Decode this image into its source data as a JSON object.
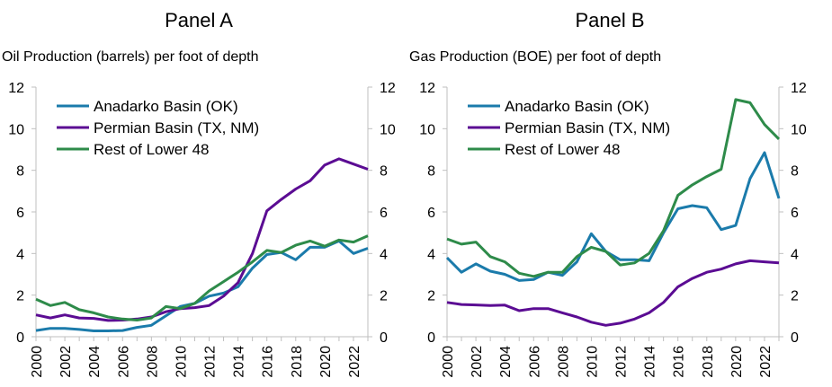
{
  "chart_data": [
    {
      "type": "line",
      "title": "Panel A",
      "subtitle": "Oil Production (barrels) per foot of depth",
      "xlabel": "",
      "ylabel": "Oil Production (barrels) per foot of depth",
      "xlim": [
        2000,
        2023
      ],
      "ylim": [
        0,
        12
      ],
      "x_ticks": [
        "2000",
        "2002",
        "2004",
        "2006",
        "2008",
        "2010",
        "2012",
        "2014",
        "2016",
        "2018",
        "2020",
        "2022"
      ],
      "y_ticks": [
        "0",
        "2",
        "4",
        "6",
        "8",
        "10",
        "12"
      ],
      "legend_position": "top-left",
      "x": [
        2000,
        2001,
        2002,
        2003,
        2004,
        2005,
        2006,
        2007,
        2008,
        2009,
        2010,
        2011,
        2012,
        2013,
        2014,
        2015,
        2016,
        2017,
        2018,
        2019,
        2020,
        2021,
        2022,
        2023
      ],
      "series": [
        {
          "name": "Anadarko Basin (OK)",
          "color": "#1b7bab",
          "values": [
            0.3,
            0.4,
            0.4,
            0.35,
            0.28,
            0.28,
            0.3,
            0.45,
            0.55,
            1.0,
            1.45,
            1.6,
            1.95,
            2.1,
            2.4,
            3.3,
            3.95,
            4.05,
            3.7,
            4.3,
            4.3,
            4.6,
            4.0,
            4.25
          ]
        },
        {
          "name": "Permian Basin (TX, NM)",
          "color": "#5b0c93",
          "values": [
            1.05,
            0.9,
            1.05,
            0.9,
            0.88,
            0.78,
            0.8,
            0.85,
            0.95,
            1.2,
            1.35,
            1.4,
            1.5,
            1.95,
            2.6,
            4.0,
            6.05,
            6.6,
            7.1,
            7.5,
            8.25,
            8.55,
            8.3,
            8.05
          ]
        },
        {
          "name": "Rest of Lower 48",
          "color": "#2e8b4a",
          "values": [
            1.8,
            1.5,
            1.65,
            1.3,
            1.15,
            0.95,
            0.85,
            0.8,
            0.9,
            1.45,
            1.35,
            1.6,
            2.2,
            2.65,
            3.1,
            3.6,
            4.15,
            4.05,
            4.4,
            4.6,
            4.35,
            4.65,
            4.55,
            4.85
          ]
        }
      ]
    },
    {
      "type": "line",
      "title": "Panel B",
      "subtitle": "Gas Production (BOE) per foot of depth",
      "xlabel": "",
      "ylabel": "Gas Production (BOE) per foot of depth",
      "xlim": [
        2000,
        2023
      ],
      "ylim": [
        0,
        12
      ],
      "x_ticks": [
        "2000",
        "2002",
        "2004",
        "2006",
        "2008",
        "2010",
        "2012",
        "2014",
        "2016",
        "2018",
        "2020",
        "2022"
      ],
      "y_ticks": [
        "0",
        "2",
        "4",
        "6",
        "8",
        "10",
        "12"
      ],
      "legend_position": "top-left",
      "x": [
        2000,
        2001,
        2002,
        2003,
        2004,
        2005,
        2006,
        2007,
        2008,
        2009,
        2010,
        2011,
        2012,
        2013,
        2014,
        2015,
        2016,
        2017,
        2018,
        2019,
        2020,
        2021,
        2022,
        2023
      ],
      "series": [
        {
          "name": "Anadarko Basin (OK)",
          "color": "#1b7bab",
          "values": [
            3.8,
            3.1,
            3.5,
            3.15,
            3.0,
            2.7,
            2.75,
            3.1,
            2.95,
            3.6,
            4.95,
            4.1,
            3.7,
            3.7,
            3.65,
            5.0,
            6.15,
            6.3,
            6.2,
            5.15,
            5.35,
            7.6,
            8.85,
            6.65
          ]
        },
        {
          "name": "Permian Basin (TX, NM)",
          "color": "#5b0c93",
          "values": [
            1.65,
            1.55,
            1.53,
            1.5,
            1.52,
            1.25,
            1.35,
            1.35,
            1.15,
            0.95,
            0.7,
            0.55,
            0.65,
            0.85,
            1.15,
            1.65,
            2.4,
            2.8,
            3.1,
            3.25,
            3.5,
            3.65,
            3.6,
            3.55
          ]
        },
        {
          "name": "Rest of Lower 48",
          "color": "#2e8b4a",
          "values": [
            4.7,
            4.45,
            4.55,
            3.85,
            3.6,
            3.05,
            2.9,
            3.1,
            3.1,
            3.85,
            4.3,
            4.1,
            3.45,
            3.55,
            4.0,
            5.1,
            6.8,
            7.3,
            7.7,
            8.05,
            11.4,
            11.25,
            10.2,
            9.5
          ]
        }
      ]
    }
  ]
}
